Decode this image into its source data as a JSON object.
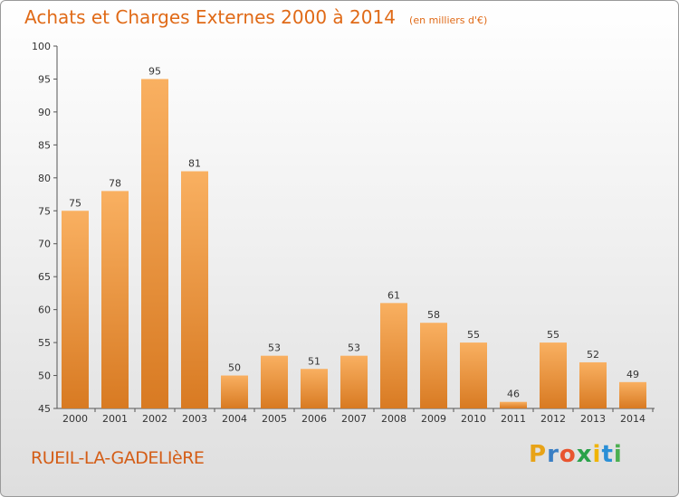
{
  "chart_data": {
    "type": "bar",
    "title": "Achats et Charges Externes 2000 à 2014",
    "unit_label": "(en milliers d'€)",
    "categories": [
      "2000",
      "2001",
      "2002",
      "2003",
      "2004",
      "2005",
      "2006",
      "2007",
      "2008",
      "2009",
      "2010",
      "2011",
      "2012",
      "2013",
      "2014"
    ],
    "values": [
      75,
      78,
      95,
      81,
      50,
      53,
      51,
      53,
      61,
      58,
      55,
      46,
      55,
      52,
      49
    ],
    "ylim": [
      45,
      100
    ],
    "yticks": [
      45,
      50,
      55,
      60,
      65,
      70,
      75,
      80,
      85,
      90,
      95,
      100
    ],
    "xlabel": "",
    "ylabel": "",
    "grid": false,
    "data_labels": true,
    "bar_color": "#f0963f",
    "bar_color_light": "#f9b061",
    "bar_color_dark": "#d87a22"
  },
  "place_name": "RUEIL-LA-GADELIèRE",
  "logo": {
    "letters": [
      "P",
      "r",
      "o",
      "x",
      "i",
      "t",
      "i"
    ],
    "colors": [
      "#e8a317",
      "#3a7fc4",
      "#e8542f",
      "#2aa24a",
      "#f0b400",
      "#2a8fd6",
      "#4caf50"
    ]
  }
}
